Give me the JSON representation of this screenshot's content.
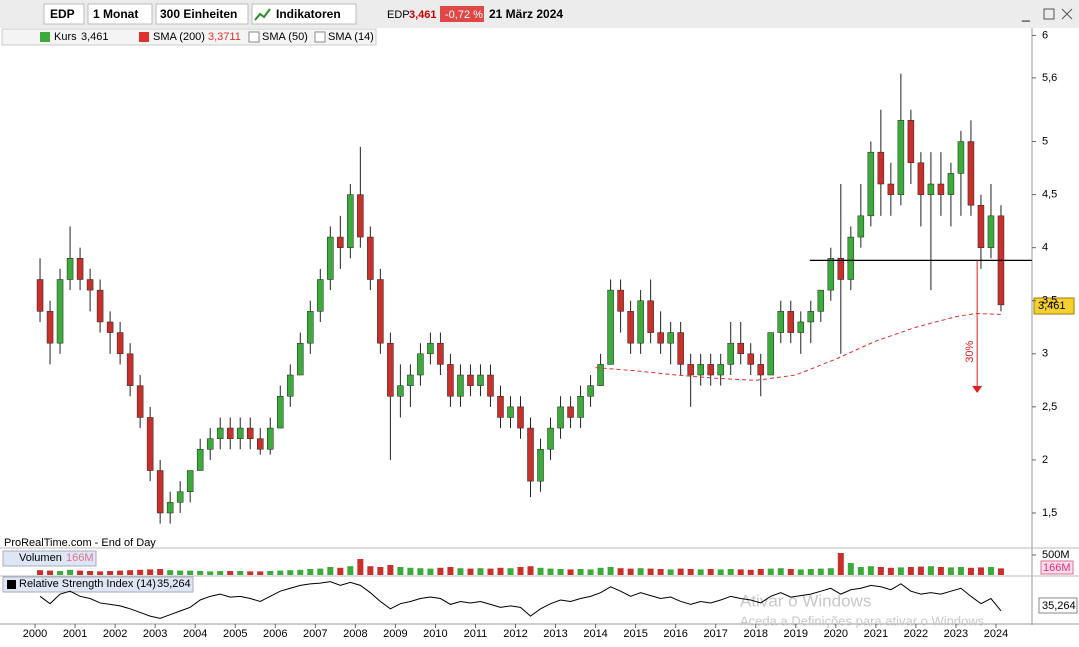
{
  "toolbar": {
    "symbol": "EDP",
    "period": "1 Monat",
    "units": "300 Einheiten",
    "indicators": "Indikatoren",
    "quote_symbol": "EDP",
    "change": "-0,72 %",
    "date": "21 März 2024"
  },
  "quote": {
    "price": "3,461"
  },
  "legend": {
    "price_name": "Kurs",
    "sma50": "SMA (50)",
    "sma14": "SMA (14)"
  },
  "source": "ProRealTime.com - End of Day",
  "watermark": {
    "title": "Ativar o Windows",
    "subtitle": "Aceda a Definições para ativar o Windows."
  },
  "chart_data": [
    {
      "type": "candlestick",
      "up_color": "#3cab3c",
      "down_color": "#c8302c",
      "x": [
        2000.125,
        2000.375,
        2000.625,
        2000.875,
        2001.125,
        2001.375,
        2001.625,
        2001.875,
        2002.125,
        2002.375,
        2002.625,
        2002.875,
        2003.125,
        2003.375,
        2003.625,
        2003.875,
        2004.125,
        2004.375,
        2004.625,
        2004.875,
        2005.125,
        2005.375,
        2005.625,
        2005.875,
        2006.125,
        2006.375,
        2006.625,
        2006.875,
        2007.125,
        2007.375,
        2007.625,
        2007.875,
        2008.125,
        2008.375,
        2008.625,
        2008.875,
        2009.125,
        2009.375,
        2009.625,
        2009.875,
        2010.125,
        2010.375,
        2010.625,
        2010.875,
        2011.125,
        2011.375,
        2011.625,
        2011.875,
        2012.125,
        2012.375,
        2012.625,
        2012.875,
        2013.125,
        2013.375,
        2013.625,
        2013.875,
        2014.125,
        2014.375,
        2014.625,
        2014.875,
        2015.125,
        2015.375,
        2015.625,
        2015.875,
        2016.125,
        2016.375,
        2016.625,
        2016.875,
        2017.125,
        2017.375,
        2017.625,
        2017.875,
        2018.125,
        2018.375,
        2018.625,
        2018.875,
        2019.125,
        2019.375,
        2019.625,
        2019.875,
        2020.125,
        2020.375,
        2020.625,
        2020.875,
        2021.125,
        2021.375,
        2021.625,
        2021.875,
        2022.125,
        2022.375,
        2022.625,
        2022.875,
        2023.125,
        2023.375,
        2023.625,
        2023.875,
        2024.125
      ],
      "open": [
        3.7,
        3.4,
        3.1,
        3.7,
        3.9,
        3.7,
        3.6,
        3.3,
        3.2,
        3.0,
        2.7,
        2.4,
        1.9,
        1.5,
        1.6,
        1.7,
        1.9,
        2.1,
        2.2,
        2.3,
        2.2,
        2.3,
        2.2,
        2.1,
        2.3,
        2.6,
        2.8,
        3.1,
        3.4,
        3.7,
        4.1,
        4.0,
        4.5,
        4.1,
        3.7,
        3.1,
        2.6,
        2.7,
        2.8,
        3.0,
        3.1,
        2.9,
        2.6,
        2.8,
        2.7,
        2.8,
        2.6,
        2.4,
        2.5,
        2.3,
        1.8,
        2.1,
        2.3,
        2.5,
        2.4,
        2.6,
        2.7,
        2.9,
        3.6,
        3.4,
        3.1,
        3.5,
        3.2,
        3.1,
        3.2,
        2.9,
        2.8,
        2.9,
        2.8,
        2.9,
        3.1,
        3.0,
        2.9,
        2.8,
        3.2,
        3.4,
        3.2,
        3.3,
        3.4,
        3.6,
        3.9,
        3.7,
        4.1,
        4.3,
        4.9,
        4.6,
        4.5,
        5.2,
        4.8,
        4.5,
        4.6,
        4.5,
        4.7,
        5.0,
        4.4,
        4.0,
        4.3
      ],
      "high": [
        3.9,
        3.5,
        3.8,
        4.2,
        4.0,
        3.8,
        3.7,
        3.4,
        3.3,
        3.1,
        2.8,
        2.5,
        2.0,
        1.7,
        1.8,
        1.9,
        2.2,
        2.3,
        2.4,
        2.4,
        2.4,
        2.4,
        2.3,
        2.4,
        2.7,
        2.9,
        3.2,
        3.5,
        3.8,
        4.2,
        4.3,
        4.6,
        4.95,
        4.2,
        3.8,
        3.2,
        2.9,
        2.9,
        3.1,
        3.2,
        3.2,
        3.0,
        2.9,
        2.9,
        2.9,
        2.9,
        2.7,
        2.6,
        2.6,
        2.4,
        2.2,
        2.4,
        2.6,
        2.6,
        2.7,
        2.8,
        3.0,
        3.7,
        3.7,
        3.5,
        3.6,
        3.7,
        3.4,
        3.3,
        3.3,
        3.0,
        3.0,
        3.0,
        3.0,
        3.3,
        3.3,
        3.1,
        3.0,
        3.2,
        3.5,
        3.5,
        3.4,
        3.5,
        3.6,
        4.0,
        4.6,
        4.2,
        4.6,
        5.0,
        5.3,
        4.8,
        5.64,
        5.3,
        4.9,
        4.9,
        4.9,
        4.8,
        5.1,
        5.2,
        4.5,
        4.6,
        4.4
      ],
      "low": [
        3.3,
        2.9,
        3.0,
        3.6,
        3.6,
        3.4,
        3.2,
        3.0,
        2.9,
        2.6,
        2.3,
        1.8,
        1.4,
        1.4,
        1.5,
        1.6,
        1.9,
        2.0,
        2.1,
        2.1,
        2.1,
        2.1,
        2.05,
        2.05,
        2.3,
        2.5,
        2.8,
        3.0,
        3.3,
        3.6,
        3.8,
        3.9,
        4.0,
        3.6,
        3.0,
        2.0,
        2.4,
        2.5,
        2.7,
        2.9,
        2.8,
        2.5,
        2.5,
        2.6,
        2.6,
        2.5,
        2.3,
        2.3,
        2.2,
        1.65,
        1.7,
        2.0,
        2.2,
        2.3,
        2.3,
        2.5,
        2.7,
        2.9,
        3.2,
        3.0,
        3.0,
        3.1,
        3.0,
        2.9,
        2.8,
        2.5,
        2.7,
        2.7,
        2.7,
        2.8,
        2.9,
        2.8,
        2.6,
        2.8,
        3.1,
        3.1,
        3.0,
        3.1,
        3.3,
        3.5,
        3.0,
        3.6,
        4.0,
        4.2,
        4.3,
        4.3,
        4.4,
        4.6,
        4.2,
        3.6,
        4.3,
        4.2,
        4.3,
        4.3,
        3.8,
        3.9,
        3.4
      ],
      "close": [
        3.4,
        3.1,
        3.7,
        3.9,
        3.7,
        3.6,
        3.3,
        3.2,
        3.0,
        2.7,
        2.4,
        1.9,
        1.5,
        1.6,
        1.7,
        1.9,
        2.1,
        2.2,
        2.3,
        2.2,
        2.3,
        2.2,
        2.1,
        2.3,
        2.6,
        2.8,
        3.1,
        3.4,
        3.7,
        4.1,
        4.0,
        4.5,
        4.1,
        3.7,
        3.1,
        2.6,
        2.7,
        2.8,
        3.0,
        3.1,
        2.9,
        2.6,
        2.8,
        2.7,
        2.8,
        2.6,
        2.4,
        2.5,
        2.3,
        1.8,
        2.1,
        2.3,
        2.5,
        2.4,
        2.6,
        2.7,
        2.9,
        3.6,
        3.4,
        3.1,
        3.5,
        3.2,
        3.1,
        3.2,
        2.9,
        2.8,
        2.9,
        2.8,
        2.9,
        3.1,
        3.0,
        2.9,
        2.8,
        3.2,
        3.4,
        3.2,
        3.3,
        3.4,
        3.6,
        3.9,
        3.7,
        4.1,
        4.3,
        4.9,
        4.6,
        4.5,
        5.2,
        4.8,
        4.5,
        4.6,
        4.5,
        4.7,
        5.0,
        4.4,
        4.0,
        4.3,
        3.461
      ],
      "xlim": [
        1999.25,
        2024.9
      ],
      "ylim": [
        1.17,
        6.07
      ],
      "xticks": [
        2000,
        2001,
        2002,
        2003,
        2004,
        2005,
        2006,
        2007,
        2008,
        2009,
        2010,
        2011,
        2012,
        2013,
        2014,
        2015,
        2016,
        2017,
        2018,
        2019,
        2020,
        2021,
        2022,
        2023,
        2024
      ],
      "yticks": [
        6,
        {
          "value": 5.6,
          "label": "5,6"
        },
        5,
        {
          "value": 4.5,
          "label": "4,5"
        },
        4,
        {
          "value": 3.5,
          "label": "3,5"
        },
        3,
        {
          "value": 2.5,
          "label": "2,5"
        },
        2,
        {
          "value": 1.5,
          "label": "1,5"
        }
      ],
      "overlays": [
        {
          "name": "SMA (200)",
          "color": "#e03030",
          "value_label": "3,3711",
          "x": [
            2014.0,
            2015.0,
            2016.0,
            2017.0,
            2018.0,
            2019.0,
            2020.0,
            2021.0,
            2022.0,
            2023.0,
            2023.5,
            2024.17
          ],
          "values": [
            2.87,
            2.84,
            2.8,
            2.77,
            2.75,
            2.8,
            2.95,
            3.12,
            3.25,
            3.35,
            3.38,
            3.3711
          ]
        }
      ],
      "hline": {
        "y": 3.88,
        "x": [
          2019.35,
          2024.9
        ]
      },
      "arrow": {
        "x": 2023.53,
        "y": [
          3.88,
          2.63
        ],
        "label": "30%",
        "color": "#e02020"
      }
    },
    {
      "type": "bar",
      "title": "Volumen",
      "value_label": "166M",
      "ylim": [
        0,
        625
      ],
      "yticks": [
        {
          "value": 500,
          "label": "500M"
        }
      ],
      "values": [
        120,
        110,
        100,
        130,
        110,
        100,
        90,
        100,
        110,
        120,
        130,
        140,
        150,
        120,
        110,
        110,
        100,
        90,
        100,
        100,
        100,
        90,
        90,
        100,
        110,
        120,
        130,
        150,
        160,
        200,
        180,
        220,
        400,
        220,
        200,
        250,
        200,
        180,
        170,
        160,
        180,
        200,
        170,
        160,
        170,
        160,
        180,
        170,
        200,
        220,
        180,
        160,
        150,
        140,
        150,
        140,
        180,
        200,
        170,
        160,
        170,
        160,
        150,
        140,
        160,
        150,
        140,
        150,
        140,
        150,
        140,
        130,
        150,
        160,
        170,
        150,
        140,
        150,
        160,
        170,
        550,
        300,
        200,
        220,
        200,
        180,
        190,
        200,
        210,
        220,
        200,
        190,
        200,
        180,
        190,
        200,
        166
      ]
    },
    {
      "type": "line",
      "title": "Relative Strength Index (14)",
      "value_label": "35,264",
      "color": "#000000",
      "ylim": [
        20,
        80
      ],
      "values": [
        55,
        45,
        58,
        62,
        55,
        52,
        46,
        44,
        42,
        38,
        33,
        28,
        25,
        30,
        35,
        40,
        50,
        55,
        58,
        54,
        55,
        52,
        48,
        55,
        62,
        66,
        70,
        72,
        73,
        75,
        70,
        74,
        70,
        60,
        48,
        38,
        45,
        48,
        52,
        54,
        52,
        44,
        48,
        46,
        48,
        44,
        40,
        42,
        40,
        28,
        38,
        45,
        50,
        48,
        52,
        55,
        60,
        68,
        62,
        55,
        60,
        56,
        52,
        54,
        48,
        44,
        48,
        46,
        50,
        55,
        52,
        50,
        46,
        55,
        60,
        54,
        56,
        58,
        62,
        66,
        58,
        64,
        66,
        70,
        68,
        64,
        72,
        62,
        58,
        60,
        58,
        62,
        66,
        55,
        45,
        52,
        35.264
      ]
    }
  ]
}
